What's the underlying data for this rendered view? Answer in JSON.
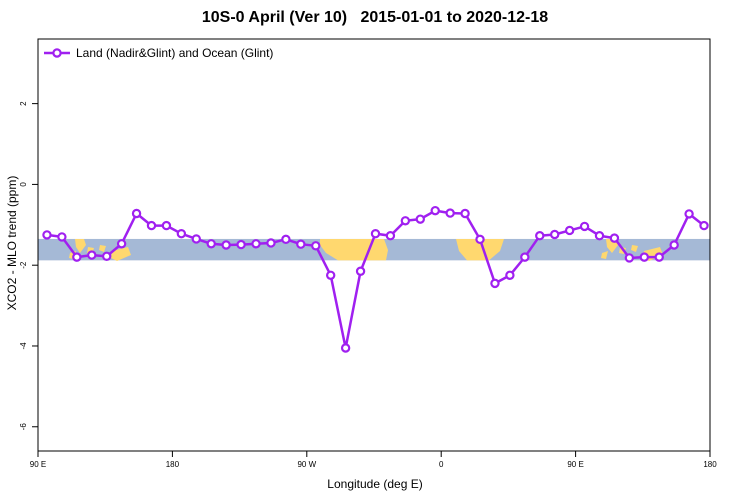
{
  "chart_data": {
    "type": "line",
    "title": "10S-0 April (Ver 10)   2015-01-01 to 2020-12-18",
    "xlabel": "Longitude (deg E)",
    "ylabel": "XCO2 - MLO trend (ppm)",
    "x_ticks": [
      {
        "value": 90,
        "label": "90 E"
      },
      {
        "value": 180,
        "label": "180"
      },
      {
        "value": 270,
        "label": "90 W"
      },
      {
        "value": 360,
        "label": "0"
      },
      {
        "value": 450,
        "label": "90 E"
      },
      {
        "value": 540,
        "label": "180"
      }
    ],
    "y_ticks": [
      {
        "value": 2,
        "label": "2"
      },
      {
        "value": 0,
        "label": "0"
      },
      {
        "value": -2,
        "label": "-2"
      },
      {
        "value": -4,
        "label": "-4"
      },
      {
        "value": -6,
        "label": "-6"
      }
    ],
    "xlim": [
      90,
      540
    ],
    "ylim": [
      -6.6,
      3.6
    ],
    "grid": false,
    "legend": {
      "position": "top-left",
      "entries": [
        "Land (Nadir&Glint) and Ocean (Glint)"
      ]
    },
    "series": [
      {
        "name": "Land (Nadir&Glint) and Ocean (Glint)",
        "color": "#a020f0",
        "x": [
          96,
          106,
          116,
          126,
          136,
          146,
          156,
          166,
          176,
          186,
          196,
          206,
          216,
          226,
          236,
          246,
          256,
          266,
          276,
          286,
          296,
          306,
          316,
          326,
          336,
          346,
          356,
          366,
          376,
          386,
          396,
          406,
          416,
          426,
          436,
          446,
          456,
          466,
          476,
          486,
          496,
          506,
          516,
          526,
          536
        ],
        "y": [
          -1.25,
          -1.3,
          -1.8,
          -1.75,
          -1.78,
          -1.47,
          -0.72,
          -1.02,
          -1.02,
          -1.22,
          -1.35,
          -1.47,
          -1.5,
          -1.49,
          -1.47,
          -1.45,
          -1.36,
          -1.48,
          -1.52,
          -2.25,
          -4.05,
          -2.15,
          -1.22,
          -1.27,
          -0.9,
          -0.86,
          -0.65,
          -0.71,
          -0.72,
          -1.36,
          -2.45,
          -2.25,
          -1.8,
          -1.27,
          -1.24,
          -1.14,
          -1.04,
          -1.27,
          -1.33,
          -1.82,
          -1.8,
          -1.8,
          -1.5,
          -0.73,
          -1.02
        ]
      }
    ],
    "background_band": {
      "y_range": [
        -1.35,
        -1.88
      ],
      "ocean_color": "#a5b9d6",
      "land_color": "#ffd86f"
    }
  }
}
